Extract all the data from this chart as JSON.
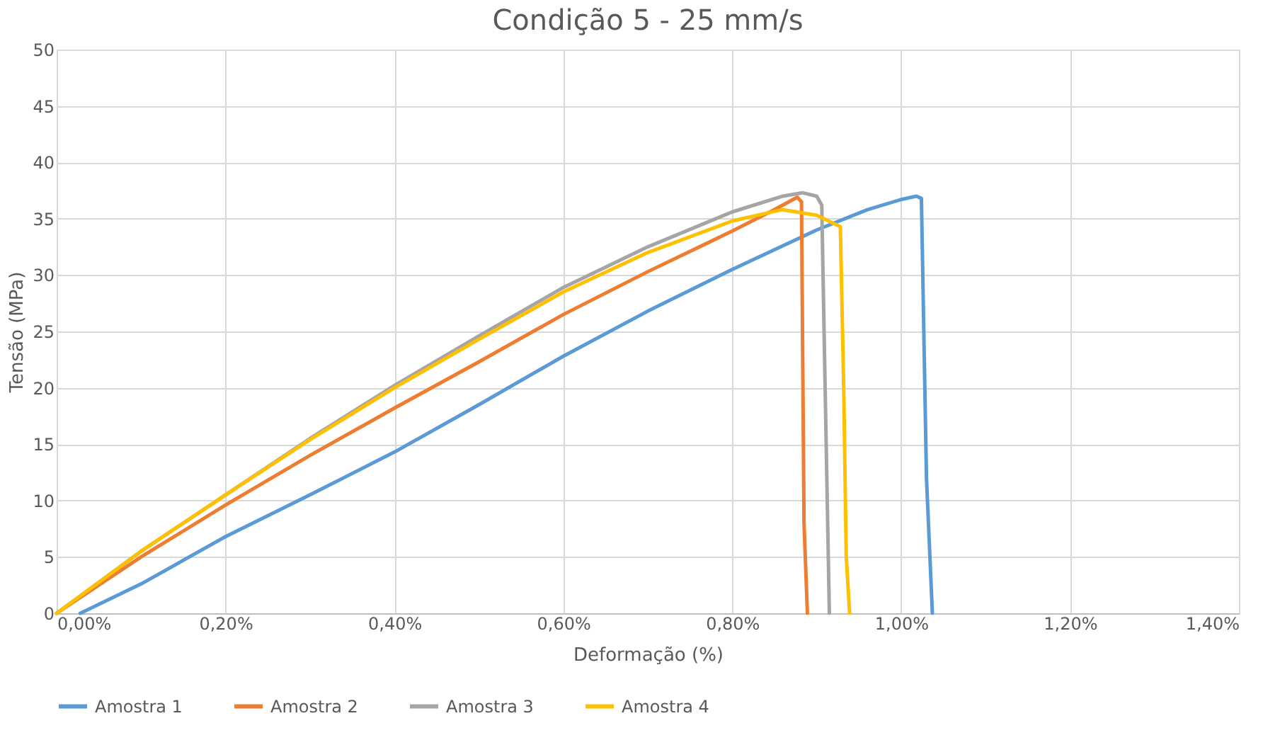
{
  "chart_data": {
    "type": "line",
    "title": "Condição 5 - 25 mm/s",
    "xlabel": "Deformação (%)",
    "ylabel": "Tensão (MPa)",
    "xlim": [
      0,
      1.4
    ],
    "xticks": [
      {
        "value": 0,
        "label": "0,00%"
      },
      {
        "value": 0.2,
        "label": "0,20%"
      },
      {
        "value": 0.4,
        "label": "0,40%"
      },
      {
        "value": 0.6,
        "label": "0,60%"
      },
      {
        "value": 0.8,
        "label": "0,80%"
      },
      {
        "value": 1.0,
        "label": "1,00%"
      },
      {
        "value": 1.2,
        "label": "1,20%"
      },
      {
        "value": 1.4,
        "label": "1,40%"
      }
    ],
    "ylim": [
      0,
      50
    ],
    "yticks": [
      0,
      5,
      10,
      15,
      20,
      25,
      30,
      35,
      40,
      45,
      50
    ],
    "grid": true,
    "legend": "bottom",
    "marker": "none",
    "line_style": "solid",
    "series": [
      {
        "name": "Amostra 1",
        "color": "#5b9bd5",
        "x": [
          0.028,
          0.1,
          0.2,
          0.3,
          0.4,
          0.5,
          0.6,
          0.7,
          0.8,
          0.9,
          0.96,
          1.0,
          1.018,
          1.024,
          1.03,
          1.037
        ],
        "values": [
          0,
          2.6,
          6.8,
          10.5,
          14.3,
          18.5,
          22.8,
          26.8,
          30.5,
          34,
          35.8,
          36.7,
          37.0,
          36.8,
          12,
          0
        ]
      },
      {
        "name": "Amostra 2",
        "color": "#ed7d31",
        "x": [
          0,
          0.1,
          0.2,
          0.3,
          0.4,
          0.5,
          0.6,
          0.7,
          0.8,
          0.85,
          0.877,
          0.882,
          0.885,
          0.889
        ],
        "values": [
          0,
          5,
          9.6,
          14,
          18.2,
          22.3,
          26.5,
          30.3,
          33.9,
          35.8,
          36.9,
          36.5,
          8,
          0
        ]
      },
      {
        "name": "Amostra 3",
        "color": "#a5a5a5",
        "x": [
          0,
          0.1,
          0.2,
          0.3,
          0.4,
          0.5,
          0.6,
          0.7,
          0.8,
          0.86,
          0.883,
          0.9,
          0.906,
          0.91,
          0.915
        ],
        "values": [
          0,
          5.5,
          10.5,
          15.5,
          20.2,
          24.6,
          28.9,
          32.5,
          35.6,
          37.0,
          37.3,
          37.0,
          36.2,
          20,
          0
        ]
      },
      {
        "name": "Amostra 4",
        "color": "#ffc000",
        "x": [
          0,
          0.1,
          0.2,
          0.3,
          0.4,
          0.5,
          0.6,
          0.7,
          0.8,
          0.859,
          0.9,
          0.928,
          0.932,
          0.935,
          0.939
        ],
        "values": [
          0,
          5.5,
          10.5,
          15.4,
          20,
          24.3,
          28.5,
          32,
          34.8,
          35.8,
          35.3,
          34.3,
          20,
          5,
          0
        ]
      }
    ]
  }
}
